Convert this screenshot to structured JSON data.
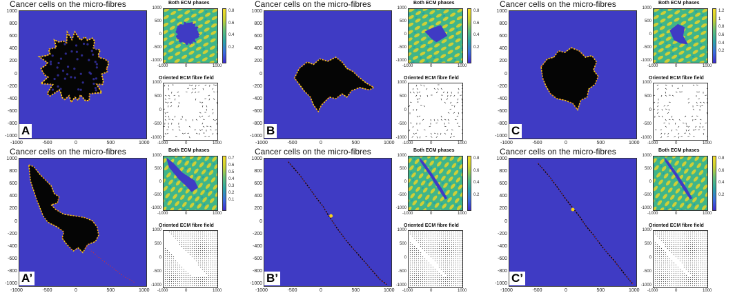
{
  "colors": {
    "background_blue": "#3f3bc4",
    "cell_black": "#050505",
    "edge_yellow": "#f7d21a",
    "edge_red": "#e0302a",
    "fibre_green": "#3fb58a",
    "fibre_yellow": "#e9d327",
    "fibre_teal": "#23a0a8"
  },
  "main_title": "Cancer cells on the micro-fibres",
  "ecm_title": "Both ECM phases",
  "fibre_title": "Oriented ECM fibre field",
  "chart_data": [
    {
      "type": "heatmap",
      "panel": "A",
      "label": "A",
      "title": "Cancer cells on the micro-fibres",
      "xlim": [
        -1000,
        1000
      ],
      "ylim": [
        -1000,
        1000
      ],
      "xticks": [
        "-1000",
        "-500",
        "0",
        "500",
        "1000"
      ],
      "yticks": [
        "1000",
        "800",
        "600",
        "400",
        "200",
        "0",
        "-200",
        "-400",
        "-600",
        "-800",
        "-1000"
      ],
      "ecm": {
        "title": "Both ECM phases",
        "colorbar_ticks": [
          "0.8",
          "0.6",
          "0.4",
          "0.2"
        ],
        "xticks": [
          "-1000",
          "0",
          "1000"
        ],
        "yticks": [
          "1000",
          "500",
          "0",
          "-500",
          "-1000"
        ]
      },
      "fibre": {
        "title": "Oriented ECM fibre field",
        "xticks": [
          "-1000",
          "0",
          "1000"
        ],
        "yticks": [
          "1000",
          "500",
          "0",
          "-500",
          "-1000"
        ]
      }
    },
    {
      "type": "heatmap",
      "panel": "B",
      "label": "B",
      "title": "Cancer cells on the micro-fibres",
      "xlim": [
        -1000,
        1000
      ],
      "ylim": [
        -1000,
        1000
      ],
      "xticks": [
        "-1000",
        "-500",
        "0",
        "500",
        "1000"
      ],
      "yticks": [
        "1000",
        "800",
        "600",
        "400",
        "200",
        "0",
        "-200",
        "-400",
        "-600",
        "-800",
        "-1000"
      ],
      "ecm": {
        "title": "Both ECM phases",
        "colorbar_ticks": [
          "0.8",
          "0.6",
          "0.4",
          "0.2"
        ],
        "xticks": [
          "-1000",
          "0",
          "1000"
        ],
        "yticks": [
          "1000",
          "500",
          "0",
          "-500",
          "-1000"
        ]
      },
      "fibre": {
        "title": "Oriented ECM fibre field",
        "xticks": [
          "-1000",
          "0",
          "1000"
        ],
        "yticks": [
          "1000",
          "500",
          "0",
          "-500",
          "-1000"
        ]
      }
    },
    {
      "type": "heatmap",
      "panel": "C",
      "label": "C",
      "title": "Cancer cells on the micro-fibres",
      "xlim": [
        -1000,
        1000
      ],
      "ylim": [
        -1000,
        1000
      ],
      "xticks": [
        "-1000",
        "-500",
        "0",
        "500",
        "1000"
      ],
      "yticks": [
        "1000",
        "800",
        "600",
        "400",
        "200",
        "0",
        "-200",
        "-400",
        "-600",
        "-800",
        "-1000"
      ],
      "ecm": {
        "title": "Both ECM phases",
        "colorbar_ticks": [
          "1.2",
          "1",
          "0.8",
          "0.6",
          "0.4",
          "0.2"
        ],
        "xticks": [
          "-1000",
          "0",
          "1000"
        ],
        "yticks": [
          "1000",
          "500",
          "0",
          "-500",
          "-1000"
        ]
      },
      "fibre": {
        "title": "Oriented ECM fibre field",
        "xticks": [
          "-1000",
          "0",
          "1000"
        ],
        "yticks": [
          "1000",
          "500",
          "0",
          "-500",
          "-1000"
        ]
      }
    },
    {
      "type": "heatmap",
      "panel": "A-prime",
      "label": "A’",
      "title": "Cancer cells on the micro-fibres",
      "xlim": [
        -1000,
        1000
      ],
      "ylim": [
        -1000,
        1000
      ],
      "xticks": [
        "-1000",
        "-500",
        "0",
        "500",
        "1000"
      ],
      "yticks": [
        "1000",
        "800",
        "600",
        "400",
        "200",
        "0",
        "-200",
        "-400",
        "-600",
        "-800",
        "-1000"
      ],
      "ecm": {
        "title": "Both ECM phases",
        "colorbar_ticks": [
          "0.7",
          "0.6",
          "0.5",
          "0.4",
          "0.3",
          "0.2",
          "0.1"
        ],
        "xticks": [
          "-1000",
          "0",
          "1000"
        ],
        "yticks": [
          "1000",
          "500",
          "0",
          "-500",
          "-1000"
        ]
      },
      "fibre": {
        "title": "Oriented ECM fibre field",
        "xticks": [
          "-1000",
          "0",
          "1000"
        ],
        "yticks": [
          "1000",
          "500",
          "0",
          "-500",
          "-1000"
        ]
      }
    },
    {
      "type": "heatmap",
      "panel": "B-prime",
      "label": "B’",
      "title": "Cancer cells on the micro-fibres",
      "xlim": [
        -1000,
        1000
      ],
      "ylim": [
        -1000,
        1000
      ],
      "xticks": [
        "-1000",
        "-500",
        "0",
        "500",
        "1000"
      ],
      "yticks": [
        "1000",
        "800",
        "600",
        "400",
        "200",
        "0",
        "-200",
        "-400",
        "-600",
        "-800",
        "-1000"
      ],
      "ecm": {
        "title": "Both ECM phases",
        "colorbar_ticks": [
          "0.8",
          "0.6",
          "0.4",
          "0.2"
        ],
        "xticks": [
          "-1000",
          "0",
          "1000"
        ],
        "yticks": [
          "1000",
          "500",
          "0",
          "-500",
          "-1000"
        ]
      },
      "fibre": {
        "title": "Oriented ECM fibre field",
        "xticks": [
          "-1000",
          "0",
          "1000"
        ],
        "yticks": [
          "1000",
          "500",
          "0",
          "-500",
          "-1000"
        ]
      }
    },
    {
      "type": "heatmap",
      "panel": "C-prime",
      "label": "C’",
      "title": "Cancer cells on the micro-fibres",
      "xlim": [
        -1000,
        1000
      ],
      "ylim": [
        -1000,
        1000
      ],
      "xticks": [
        "-1000",
        "-500",
        "0",
        "500",
        "1000"
      ],
      "yticks": [
        "1000",
        "800",
        "600",
        "400",
        "200",
        "0",
        "-200",
        "-400",
        "-600",
        "-800",
        "-1000"
      ],
      "ecm": {
        "title": "Both ECM phases",
        "colorbar_ticks": [
          "0.8",
          "0.6",
          "0.4",
          "0.2"
        ],
        "xticks": [
          "-1000",
          "0",
          "1000"
        ],
        "yticks": [
          "1000",
          "500",
          "0",
          "-500",
          "-1000"
        ]
      },
      "fibre": {
        "title": "Oriented ECM fibre field",
        "xticks": [
          "-1000",
          "0",
          "1000"
        ],
        "yticks": [
          "1000",
          "500",
          "0",
          "-500",
          "-1000"
        ]
      }
    }
  ]
}
